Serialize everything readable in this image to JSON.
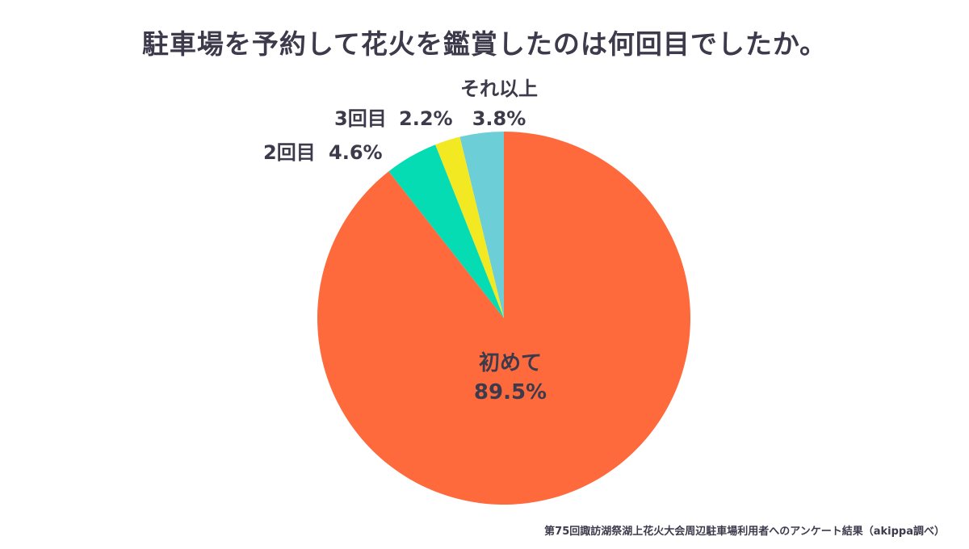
{
  "chart_data": {
    "type": "pie",
    "title": "駐車場を予約して花火を鑑賞したのは何回目でしたか。",
    "slices": [
      {
        "label": "初めて",
        "value": 89.5,
        "value_label": "89.5%",
        "color": "#ff6a3d"
      },
      {
        "label": "2回目",
        "value": 4.6,
        "value_label": "4.6%",
        "color": "#05dcb4"
      },
      {
        "label": "3回目",
        "value": 2.2,
        "value_label": "2.2%",
        "color": "#f3e923"
      },
      {
        "label": "それ以上",
        "value": 3.8,
        "value_label": "3.8%",
        "color": "#6ccfd8"
      }
    ],
    "start": "12 o'clock",
    "direction": "clockwise",
    "legend": "none"
  },
  "source_note": "第75回諏訪湖祭湖上花火大会周辺駐車場利用者へのアンケート結果（akippa調べ）"
}
